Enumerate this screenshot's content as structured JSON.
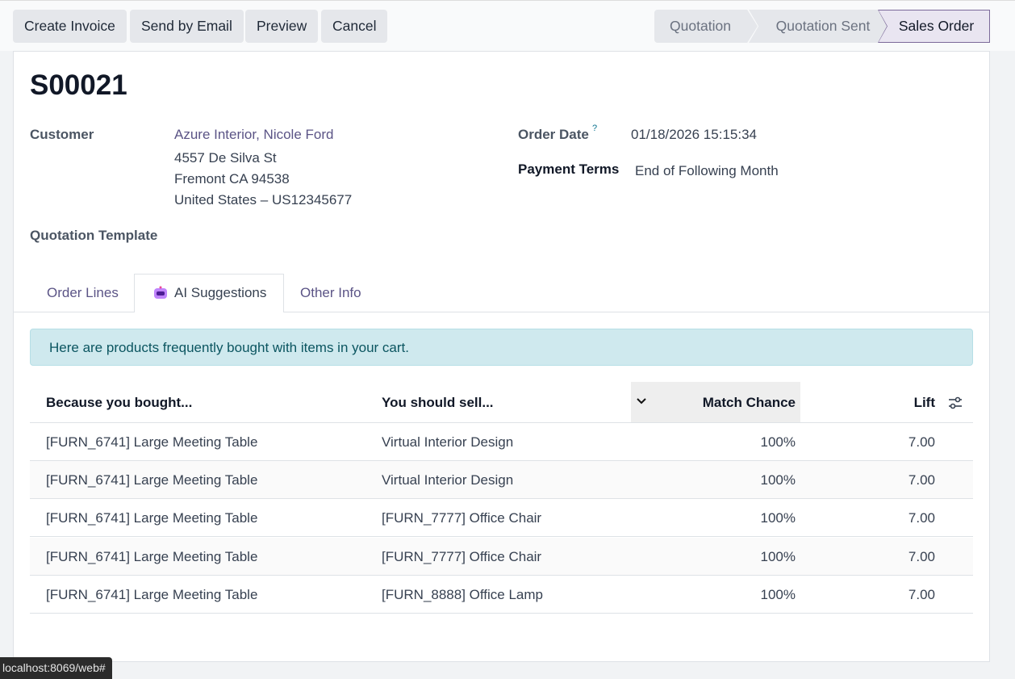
{
  "toolbar": {
    "buttons": [
      "Create Invoice",
      "Send by Email",
      "Preview",
      "Cancel"
    ],
    "stages": [
      "Quotation",
      "Quotation Sent",
      "Sales Order"
    ]
  },
  "form": {
    "title": "S00021",
    "customer": {
      "label": "Customer",
      "name": "Azure Interior, Nicole Ford",
      "address": [
        "4557 De Silva St",
        "Fremont CA 94538",
        "United States – US12345677"
      ]
    },
    "order_date": {
      "label": "Order Date",
      "help": "?",
      "value": "01/18/2026 15:15:34"
    },
    "payment_terms": {
      "label": "Payment Terms",
      "value": "End of Following Month"
    },
    "quotation_template": {
      "label": "Quotation Template"
    },
    "tabs": [
      "Order Lines",
      "AI Suggestions",
      "Other Info"
    ],
    "alert": "Here are products frequently bought with items in your cart.",
    "table": {
      "headers": [
        "Because you bought...",
        "You should sell...",
        "Match Chance",
        "Lift"
      ],
      "rows": [
        [
          "[FURN_6741] Large Meeting Table",
          "Virtual Interior Design",
          "100%",
          "7.00"
        ],
        [
          "[FURN_6741] Large Meeting Table",
          "Virtual Interior Design",
          "100%",
          "7.00"
        ],
        [
          "[FURN_6741] Large Meeting Table",
          "[FURN_7777] Office Chair",
          "100%",
          "7.00"
        ],
        [
          "[FURN_6741] Large Meeting Table",
          "[FURN_7777] Office Chair",
          "100%",
          "7.00"
        ],
        [
          "[FURN_6741] Large Meeting Table",
          "[FURN_8888] Office Lamp",
          "100%",
          "7.00"
        ]
      ]
    }
  },
  "status_url": "localhost:8069/web#"
}
